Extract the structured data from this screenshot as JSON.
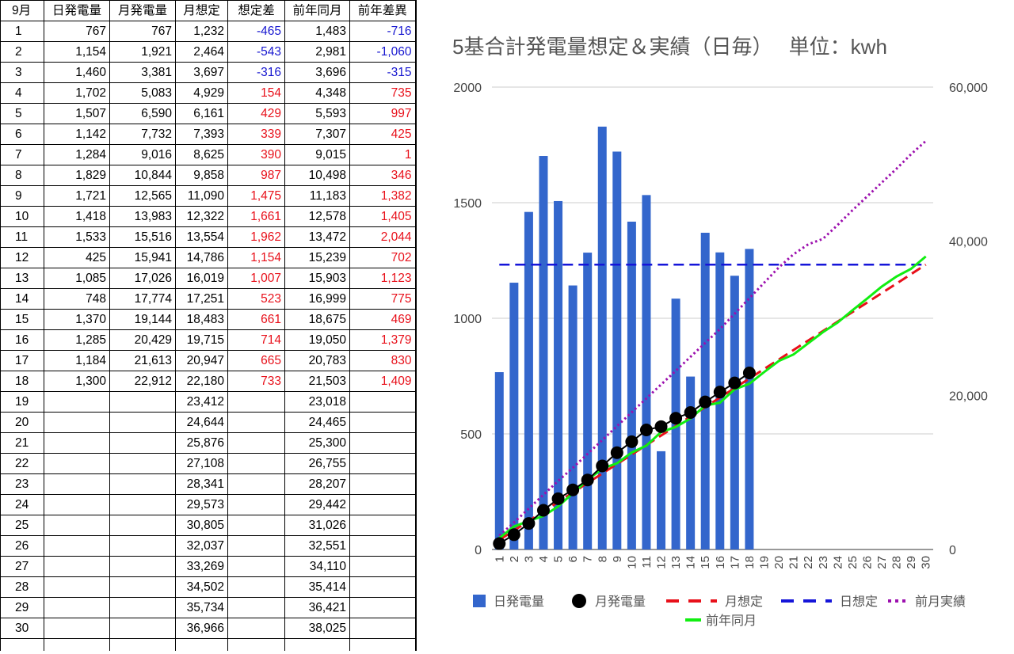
{
  "table": {
    "headers": [
      "9月",
      "日発電量",
      "月発電量",
      "月想定",
      "想定差",
      "前年同月",
      "前年差異"
    ],
    "rows": [
      [
        "1",
        "767",
        "767",
        "1,232",
        "-465",
        "1,483",
        "-716"
      ],
      [
        "2",
        "1,154",
        "1,921",
        "2,464",
        "-543",
        "2,981",
        "-1,060"
      ],
      [
        "3",
        "1,460",
        "3,381",
        "3,697",
        "-316",
        "3,696",
        "-315"
      ],
      [
        "4",
        "1,702",
        "5,083",
        "4,929",
        "154",
        "4,348",
        "735"
      ],
      [
        "5",
        "1,507",
        "6,590",
        "6,161",
        "429",
        "5,593",
        "997"
      ],
      [
        "6",
        "1,142",
        "7,732",
        "7,393",
        "339",
        "7,307",
        "425"
      ],
      [
        "7",
        "1,284",
        "9,016",
        "8,625",
        "390",
        "9,015",
        "1"
      ],
      [
        "8",
        "1,829",
        "10,844",
        "9,858",
        "987",
        "10,498",
        "346"
      ],
      [
        "9",
        "1,721",
        "12,565",
        "11,090",
        "1,475",
        "11,183",
        "1,382"
      ],
      [
        "10",
        "1,418",
        "13,983",
        "12,322",
        "1,661",
        "12,578",
        "1,405"
      ],
      [
        "11",
        "1,533",
        "15,516",
        "13,554",
        "1,962",
        "13,472",
        "2,044"
      ],
      [
        "12",
        "425",
        "15,941",
        "14,786",
        "1,154",
        "15,239",
        "702"
      ],
      [
        "13",
        "1,085",
        "17,026",
        "16,019",
        "1,007",
        "15,903",
        "1,123"
      ],
      [
        "14",
        "748",
        "17,774",
        "17,251",
        "523",
        "16,999",
        "775"
      ],
      [
        "15",
        "1,370",
        "19,144",
        "18,483",
        "661",
        "18,675",
        "469"
      ],
      [
        "16",
        "1,285",
        "20,429",
        "19,715",
        "714",
        "19,050",
        "1,379"
      ],
      [
        "17",
        "1,184",
        "21,613",
        "20,947",
        "665",
        "20,783",
        "830"
      ],
      [
        "18",
        "1,300",
        "22,912",
        "22,180",
        "733",
        "21,503",
        "1,409"
      ],
      [
        "19",
        "",
        "",
        "23,412",
        "",
        "23,018",
        ""
      ],
      [
        "20",
        "",
        "",
        "24,644",
        "",
        "24,465",
        ""
      ],
      [
        "21",
        "",
        "",
        "25,876",
        "",
        "25,300",
        ""
      ],
      [
        "22",
        "",
        "",
        "27,108",
        "",
        "26,755",
        ""
      ],
      [
        "23",
        "",
        "",
        "28,341",
        "",
        "28,207",
        ""
      ],
      [
        "24",
        "",
        "",
        "29,573",
        "",
        "29,442",
        ""
      ],
      [
        "25",
        "",
        "",
        "30,805",
        "",
        "31,026",
        ""
      ],
      [
        "26",
        "",
        "",
        "32,037",
        "",
        "32,551",
        ""
      ],
      [
        "27",
        "",
        "",
        "33,269",
        "",
        "34,110",
        ""
      ],
      [
        "28",
        "",
        "",
        "34,502",
        "",
        "35,414",
        ""
      ],
      [
        "29",
        "",
        "",
        "35,734",
        "",
        "36,421",
        ""
      ],
      [
        "30",
        "",
        "",
        "36,966",
        "",
        "38,025",
        ""
      ]
    ]
  },
  "colors": {
    "bar": "#3366cc",
    "cumulative": "#000000",
    "monthly_plan": "#e8101a",
    "daily_plan": "#1515d9",
    "prev_month": "#9c0fae",
    "prev_year": "#11ee11",
    "negative_text": "#1717d0",
    "positive_text": "#e8101a"
  },
  "chart_data": {
    "type": "bar",
    "title": "5基合計発電量想定＆実績（日毎）　 単位：kwh",
    "categories": [
      "1",
      "2",
      "3",
      "4",
      "5",
      "6",
      "7",
      "8",
      "9",
      "10",
      "11",
      "12",
      "13",
      "14",
      "15",
      "16",
      "17",
      "18",
      "19",
      "20",
      "21",
      "22",
      "23",
      "24",
      "25",
      "26",
      "27",
      "28",
      "29",
      "30"
    ],
    "left_axis": {
      "min": 0,
      "max": 2000,
      "ticks": [
        "0",
        "500",
        "1000",
        "1500",
        "2000"
      ]
    },
    "right_axis": {
      "min": 0,
      "max": 60000,
      "ticks": [
        "0",
        "20,000",
        "40,000",
        "60,000"
      ]
    },
    "grid": true,
    "legend_position": "bottom",
    "series": [
      {
        "name": "日発電量",
        "type": "bar",
        "axis": "left",
        "values": [
          767,
          1154,
          1460,
          1702,
          1507,
          1142,
          1284,
          1829,
          1721,
          1418,
          1533,
          425,
          1085,
          748,
          1370,
          1285,
          1184,
          1300,
          null,
          null,
          null,
          null,
          null,
          null,
          null,
          null,
          null,
          null,
          null,
          null
        ]
      },
      {
        "name": "月発電量",
        "type": "line-markers",
        "axis": "right",
        "values": [
          767,
          1921,
          3381,
          5083,
          6590,
          7732,
          9016,
          10844,
          12565,
          13983,
          15516,
          15941,
          17026,
          17774,
          19144,
          20429,
          21613,
          22912,
          null,
          null,
          null,
          null,
          null,
          null,
          null,
          null,
          null,
          null,
          null,
          null
        ]
      },
      {
        "name": "月想定",
        "type": "line-dashed",
        "axis": "right",
        "values": [
          1232,
          2464,
          3697,
          4929,
          6161,
          7393,
          8625,
          9858,
          11090,
          12322,
          13554,
          14786,
          16019,
          17251,
          18483,
          19715,
          20947,
          22180,
          23412,
          24644,
          25876,
          27108,
          28341,
          29573,
          30805,
          32037,
          33269,
          34502,
          35734,
          36966
        ]
      },
      {
        "name": "日想定",
        "type": "line-dashed",
        "axis": "left",
        "values": [
          1232,
          1232,
          1232,
          1232,
          1232,
          1232,
          1232,
          1232,
          1232,
          1232,
          1232,
          1232,
          1232,
          1232,
          1232,
          1232,
          1232,
          1232,
          1232,
          1232,
          1232,
          1232,
          1232,
          1232,
          1232,
          1232,
          1232,
          1232,
          1232,
          1232
        ]
      },
      {
        "name": "前月実績",
        "type": "line-dotted",
        "axis": "right",
        "values": [
          1800,
          3500,
          5300,
          7100,
          8900,
          10600,
          12400,
          14200,
          16000,
          17800,
          19600,
          21400,
          23200,
          25000,
          26800,
          28600,
          30600,
          32600,
          34600,
          36600,
          38300,
          39600,
          40300,
          42100,
          44000,
          45800,
          47600,
          49400,
          51300,
          53000
        ]
      },
      {
        "name": "前年同月",
        "type": "line",
        "axis": "right",
        "values": [
          1483,
          2981,
          3696,
          4348,
          5593,
          7307,
          9015,
          10498,
          11183,
          12578,
          13472,
          15239,
          15903,
          16999,
          18675,
          19050,
          20783,
          21503,
          23018,
          24465,
          25300,
          26755,
          28207,
          29442,
          31026,
          32551,
          34110,
          35414,
          36421,
          38025
        ]
      }
    ]
  }
}
